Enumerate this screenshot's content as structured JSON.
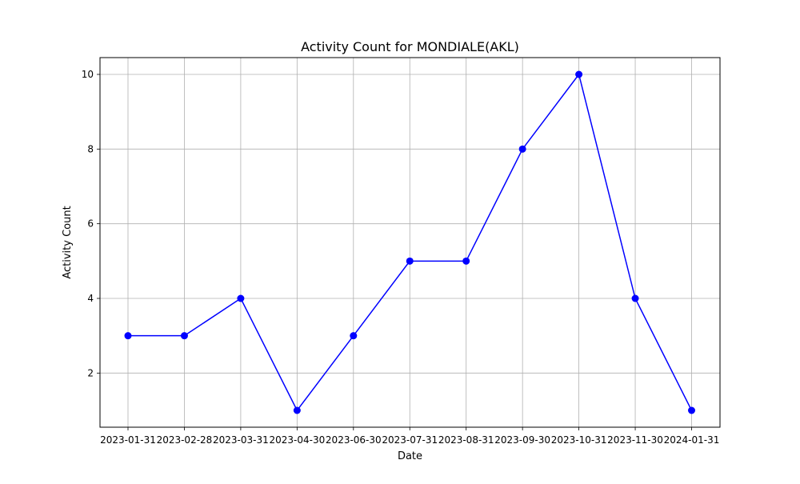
{
  "chart_data": {
    "type": "line",
    "title": "Activity Count for MONDIALE(AKL)",
    "xlabel": "Date",
    "ylabel": "Activity Count",
    "categories": [
      "2023-01-31",
      "2023-02-28",
      "2023-03-31",
      "2023-04-30",
      "2023-06-30",
      "2023-07-31",
      "2023-08-31",
      "2023-09-30",
      "2023-10-31",
      "2023-11-30",
      "2024-01-31"
    ],
    "series": [
      {
        "values": [
          3,
          3,
          4,
          1,
          3,
          5,
          5,
          8,
          10,
          4,
          1
        ],
        "color": "#0000ff",
        "marker": "circle"
      }
    ],
    "yticks": [
      2,
      4,
      6,
      8,
      10
    ],
    "ylim": [
      0.55,
      10.45
    ],
    "grid": true
  }
}
